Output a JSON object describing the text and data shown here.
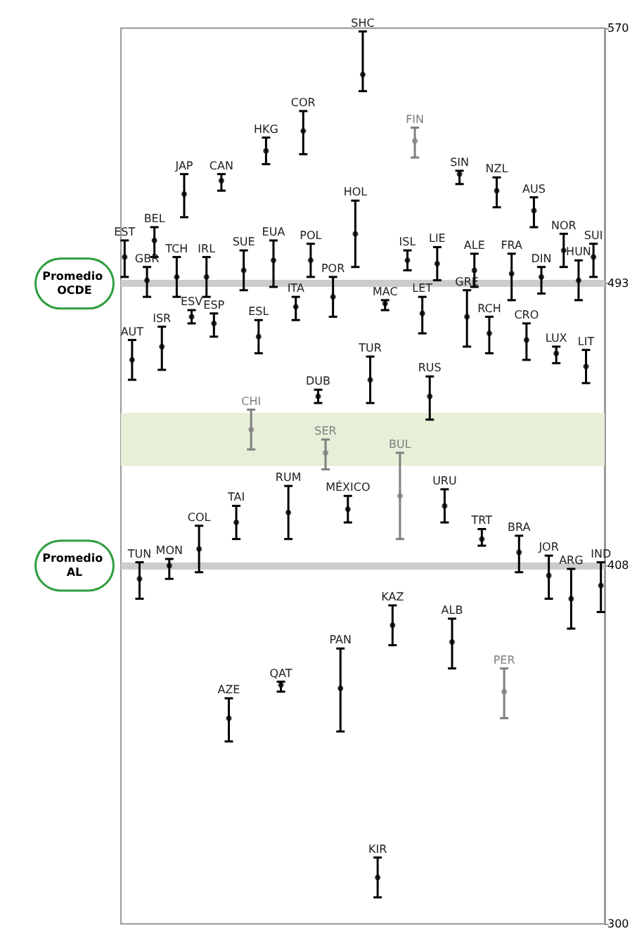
{
  "chart_data": {
    "type": "scatter",
    "categories": [
      "EST",
      "AUT",
      "TUN",
      "GBR",
      "BEL",
      "ISR",
      "MON",
      "TCH",
      "JAP",
      "ESV",
      "COL",
      "IRL",
      "ESP",
      "CAN",
      "AZE",
      "TAI",
      "SUE",
      "CHI",
      "ESL",
      "HKG",
      "EUA",
      "QAT",
      "RUM",
      "ITA",
      "COR",
      "POL",
      "DUB",
      "SER",
      "POR",
      "PAN",
      "MÉXICO",
      "HOL",
      "SHC",
      "TUR",
      "KIR",
      "MAC",
      "KAZ",
      "BUL",
      "ISL",
      "FIN",
      "LET",
      "RUS",
      "LIE",
      "URU",
      "ALB",
      "SIN",
      "GRE",
      "ALE",
      "TRT",
      "RCH",
      "NZL",
      "PER",
      "FRA",
      "BRA",
      "CRO",
      "AUS",
      "DIN",
      "JOR",
      "LUX",
      "NOR",
      "ARG",
      "HUN",
      "LIT",
      "SUI",
      "IND"
    ],
    "values": [
      501,
      470,
      404,
      494,
      506,
      474,
      408,
      495,
      520,
      483,
      413,
      495,
      481,
      524,
      362,
      421,
      497,
      449,
      477,
      533,
      500,
      372,
      424,
      486,
      539,
      500,
      459,
      442,
      489,
      371,
      425,
      508,
      556,
      464,
      314,
      487,
      390,
      429,
      500,
      536,
      484,
      459,
      499,
      426,
      385,
      526,
      483,
      497,
      416,
      478,
      521,
      370,
      496,
      412,
      476,
      515,
      495,
      405,
      472,
      503,
      398,
      494,
      468,
      501,
      402
    ],
    "errors": [
      [
        495,
        506
      ],
      [
        464,
        476
      ],
      [
        398,
        409
      ],
      [
        489,
        498
      ],
      [
        501,
        510
      ],
      [
        467,
        480
      ],
      [
        404,
        410
      ],
      [
        489,
        501
      ],
      [
        513,
        526
      ],
      [
        481,
        485
      ],
      [
        406,
        420
      ],
      [
        489,
        501
      ],
      [
        477,
        484
      ],
      [
        521,
        526
      ],
      [
        355,
        368
      ],
      [
        416,
        426
      ],
      [
        491,
        503
      ],
      [
        443,
        455
      ],
      [
        472,
        482
      ],
      [
        529,
        537
      ],
      [
        492,
        506
      ],
      [
        370,
        373
      ],
      [
        416,
        432
      ],
      [
        482,
        489
      ],
      [
        532,
        545
      ],
      [
        495,
        505
      ],
      [
        457,
        461
      ],
      [
        437,
        446
      ],
      [
        483,
        495
      ],
      [
        358,
        383
      ],
      [
        421,
        429
      ],
      [
        498,
        518
      ],
      [
        551,
        569
      ],
      [
        457,
        471
      ],
      [
        308,
        320
      ],
      [
        485,
        488
      ],
      [
        384,
        396
      ],
      [
        416,
        442
      ],
      [
        497,
        503
      ],
      [
        531,
        540
      ],
      [
        478,
        489
      ],
      [
        452,
        465
      ],
      [
        494,
        504
      ],
      [
        421,
        431
      ],
      [
        377,
        392
      ],
      [
        523,
        527
      ],
      [
        474,
        491
      ],
      [
        492,
        502
      ],
      [
        414,
        419
      ],
      [
        472,
        483
      ],
      [
        516,
        525
      ],
      [
        362,
        377
      ],
      [
        488,
        502
      ],
      [
        406,
        417
      ],
      [
        470,
        481
      ],
      [
        510,
        519
      ],
      [
        490,
        498
      ],
      [
        398,
        411
      ],
      [
        469,
        474
      ],
      [
        498,
        508
      ],
      [
        389,
        407
      ],
      [
        488,
        500
      ],
      [
        463,
        473
      ],
      [
        495,
        505
      ],
      [
        394,
        409
      ]
    ],
    "colors": [
      "#000000",
      "#000000",
      "#000000",
      "#000000",
      "#000000",
      "#000000",
      "#000000",
      "#000000",
      "#000000",
      "#000000",
      "#000000",
      "#000000",
      "#000000",
      "#000000",
      "#000000",
      "#000000",
      "#000000",
      "#7f7f7f",
      "#000000",
      "#000000",
      "#000000",
      "#000000",
      "#000000",
      "#000000",
      "#000000",
      "#000000",
      "#000000",
      "#7f7f7f",
      "#000000",
      "#000000",
      "#000000",
      "#000000",
      "#000000",
      "#000000",
      "#000000",
      "#000000",
      "#000000",
      "#7f7f7f",
      "#000000",
      "#7f7f7f",
      "#000000",
      "#000000",
      "#000000",
      "#000000",
      "#000000",
      "#000000",
      "#000000",
      "#000000",
      "#000000",
      "#000000",
      "#000000",
      "#7f7f7f",
      "#000000",
      "#000000",
      "#000000",
      "#000000",
      "#000000",
      "#000000",
      "#000000",
      "#000000",
      "#000000",
      "#000000",
      "#000000",
      "#000000",
      "#000000"
    ],
    "marker": "circle",
    "ylim": [
      300,
      570
    ],
    "yticks": [
      300,
      408,
      493,
      570
    ],
    "grid": false,
    "ref_lines": [
      {
        "axis": "y",
        "value": 493,
        "label": "Promedio OCDE",
        "color": "#cccccc"
      },
      {
        "axis": "y",
        "value": 408,
        "label": "Promedio AL",
        "color": "#cccccc"
      }
    ],
    "bands": [
      {
        "axis": "y",
        "from": 438,
        "to": 454,
        "color": "#e7efd8"
      }
    ]
  }
}
